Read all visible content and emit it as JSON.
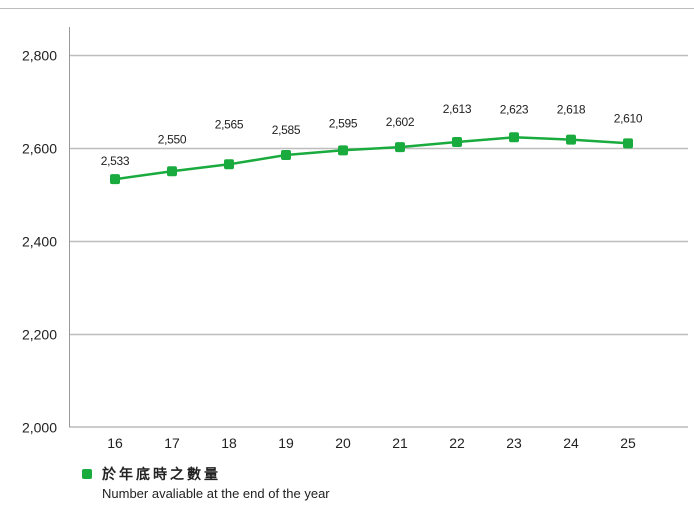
{
  "chart_data": {
    "type": "line",
    "categories": [
      "16",
      "17",
      "18",
      "19",
      "20",
      "21",
      "22",
      "23",
      "24",
      "25"
    ],
    "series": [
      {
        "name": "於年底時之數量 Number avaliable at the end of the year",
        "values": [
          2533,
          2550,
          2565,
          2585,
          2595,
          2602,
          2613,
          2623,
          2618,
          2610
        ],
        "labels": [
          "2,533",
          "2,550",
          "2,565",
          "2,585",
          "2,595",
          "2,602",
          "2,613",
          "2,623",
          "2,618",
          "2,610"
        ],
        "color": "#1aab3e"
      }
    ],
    "ylim": [
      2000,
      2900
    ],
    "yticks": [
      2000,
      2200,
      2400,
      2600,
      2800
    ],
    "ytick_labels": [
      "2,000",
      "2,200",
      "2,400",
      "2,600",
      "2,800"
    ],
    "grid": true,
    "legend_position": "bottom-left"
  },
  "legend": {
    "line1": "於年底時之數量",
    "line2": "Number avaliable at the end of the year",
    "color": "#1aab3e"
  },
  "colors": {
    "grid": "#bdbdbd",
    "axis": "#9a9a9a",
    "text": "#222222"
  }
}
